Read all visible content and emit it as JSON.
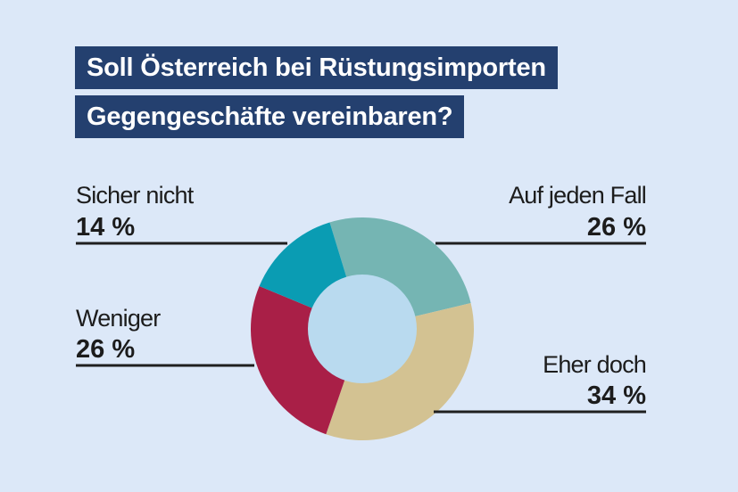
{
  "title": {
    "line1": "Soll Österreich bei Rüstungsimporten",
    "line2": "Gegengeschäfte vereinbaren?"
  },
  "colors": {
    "background": "#dce8f8",
    "title_background": "#24406f",
    "title_text": "#ffffff",
    "hole": "#b9daef"
  },
  "chart_data": {
    "type": "pie",
    "variant": "donut",
    "title": "Soll Österreich bei Rüstungsimporten Gegengeschäfte vereinbaren?",
    "unit": "%",
    "categories": [
      "Auf jeden Fall",
      "Eher doch",
      "Weniger",
      "Sicher nicht"
    ],
    "values": [
      26,
      34,
      26,
      14
    ],
    "value_labels": [
      "26 %",
      "34 %",
      "26 %",
      "14 %"
    ],
    "colors": [
      "#75b5b3",
      "#d3c292",
      "#a91f47",
      "#0a9cb3"
    ],
    "label_sides": [
      "right",
      "right",
      "left",
      "left"
    ],
    "start": "top",
    "direction": "clockwise"
  }
}
